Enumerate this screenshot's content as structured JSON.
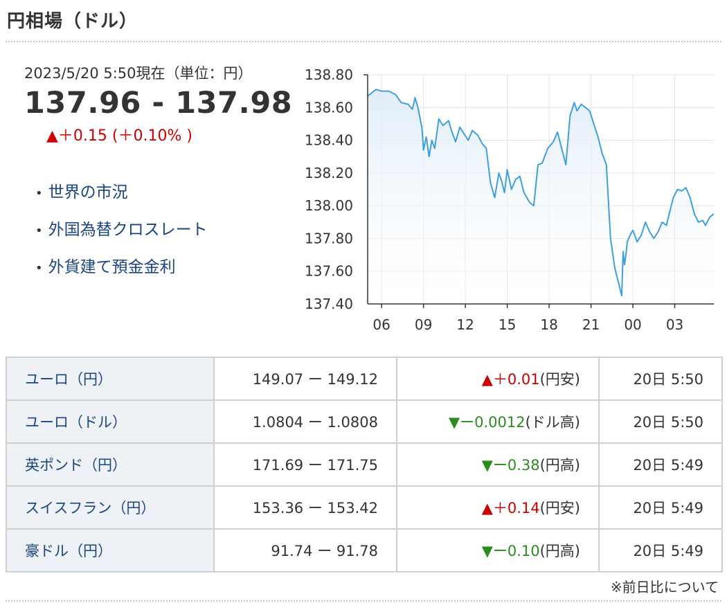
{
  "header": {
    "title": "円相場（ドル）"
  },
  "quote": {
    "timestamp": "2023/5/20 5:50現在（単位：円）",
    "rate": "137.96 - 137.98",
    "change": "▲＋0.15 (＋0.10% )"
  },
  "links": [
    "世界の市況",
    "外国為替クロスレート",
    "外貨建て預金金利"
  ],
  "colors": {
    "line": "#3da0dd",
    "up": "#cc0000",
    "down": "#2a8c1c",
    "link": "#1a4480"
  },
  "chart_data": {
    "type": "area",
    "x_tick_labels": [
      "06",
      "09",
      "12",
      "15",
      "18",
      "21",
      "00",
      "03"
    ],
    "y_tick_labels": [
      "138.80",
      "138.60",
      "138.40",
      "138.20",
      "138.00",
      "137.80",
      "137.60",
      "137.40"
    ],
    "ylim": [
      137.4,
      138.8
    ],
    "x_unit": "hours since 05:00",
    "xlim": [
      0,
      24.8
    ],
    "grid": true,
    "series": [
      {
        "x": [
          0,
          0.3,
          0.6,
          1.0,
          1.5,
          2.0,
          2.4,
          2.9,
          3.2,
          3.4,
          3.6,
          3.9,
          4.0,
          4.2,
          4.4,
          4.6,
          4.8,
          5.1,
          5.4,
          5.8,
          6.0,
          6.3,
          6.6,
          6.9,
          7.2,
          7.5,
          7.9,
          8.2,
          8.5,
          8.8,
          9.1,
          9.4,
          9.6,
          9.8,
          10.0,
          10.3,
          10.6,
          10.9,
          11.2,
          11.6,
          11.9,
          12.2,
          12.5,
          12.9,
          13.3,
          13.6,
          13.9,
          14.2,
          14.5,
          14.8,
          15.0,
          15.3,
          15.6,
          15.9,
          16.2,
          16.5,
          16.8,
          17.1,
          17.4,
          17.7,
          18.0,
          18.2,
          18.3,
          18.4,
          18.5,
          18.6,
          18.8,
          19.0,
          19.3,
          19.6,
          19.9,
          20.2,
          20.5,
          20.8,
          21.1,
          21.4,
          21.6,
          21.9,
          22.2,
          22.5,
          22.8,
          23.1,
          23.4,
          23.7,
          24.0,
          24.2,
          24.5,
          24.8
        ],
        "y": [
          138.67,
          138.69,
          138.71,
          138.7,
          138.7,
          138.68,
          138.63,
          138.62,
          138.59,
          138.66,
          138.6,
          138.47,
          138.34,
          138.42,
          138.3,
          138.4,
          138.35,
          138.53,
          138.49,
          138.52,
          138.46,
          138.39,
          138.48,
          138.44,
          138.4,
          138.46,
          138.43,
          138.38,
          138.35,
          138.14,
          138.05,
          138.2,
          138.15,
          138.08,
          138.22,
          138.1,
          138.16,
          138.18,
          138.08,
          138.02,
          138.0,
          138.25,
          138.26,
          138.35,
          138.39,
          138.45,
          138.35,
          138.25,
          138.55,
          138.63,
          138.58,
          138.62,
          138.6,
          138.58,
          138.5,
          138.42,
          138.32,
          138.25,
          137.8,
          137.62,
          137.52,
          137.45,
          137.72,
          137.64,
          137.7,
          137.78,
          137.82,
          137.85,
          137.78,
          137.82,
          137.9,
          137.84,
          137.8,
          137.84,
          137.9,
          137.88,
          137.95,
          138.05,
          138.1,
          138.09,
          138.11,
          138.05,
          137.95,
          137.9,
          137.91,
          137.88,
          137.93,
          137.95
        ]
      }
    ]
  },
  "table": {
    "rows": [
      {
        "name": "ユーロ（円）",
        "rate": "149.07 ー 149.12",
        "mark": "▲",
        "change": "＋0.01",
        "unit": "(円安)",
        "dir": "up",
        "time": "20日 5:50"
      },
      {
        "name": "ユーロ（ドル）",
        "rate": "1.0804 ー 1.0808",
        "mark": "▼",
        "change": "ー0.0012",
        "unit": "(ドル高)",
        "dir": "down",
        "time": "20日 5:50"
      },
      {
        "name": "英ポンド（円）",
        "rate": "171.69 ー 171.75",
        "mark": "▼",
        "change": "ー0.38",
        "unit": "(円高)",
        "dir": "down",
        "time": "20日 5:49"
      },
      {
        "name": "スイスフラン（円）",
        "rate": "153.36 ー 153.42",
        "mark": "▲",
        "change": "＋0.14",
        "unit": "(円安)",
        "dir": "up",
        "time": "20日 5:49"
      },
      {
        "name": "豪ドル（円）",
        "rate": "91.74 ー 91.78",
        "mark": "▼",
        "change": "ー0.10",
        "unit": "(円高)",
        "dir": "down",
        "time": "20日 5:49"
      }
    ]
  },
  "footnote": "※前日比について"
}
